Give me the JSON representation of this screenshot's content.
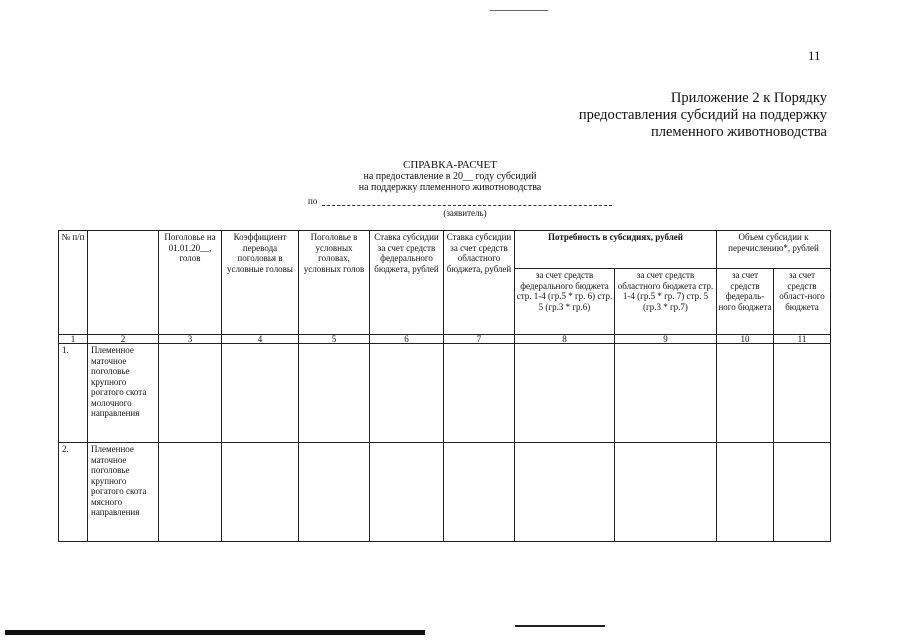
{
  "page_number": "11",
  "appendix": [
    "Приложение 2 к Порядку",
    "предоставления субсидий на поддержку",
    "племенного животноводства"
  ],
  "title": "СПРАВКА-РАСЧЕТ",
  "subtitle1": "на предоставление в 20__ году субсидий",
  "subtitle2": "на поддержку племенного животноводства",
  "applicant_prefix": "по",
  "applicant_label": "(заявитель)",
  "table": {
    "headers": {
      "c1": "№ п/п",
      "c2": "",
      "c3": "Поголовье на 01.01.20__, голов",
      "c4": "Коэффициент перевода поголовья в условные головы",
      "c5": "Поголовье в условных головах, условных голов",
      "c6": "Ставка субсидии за счет средств федерального бюджета, рублей",
      "c7": "Ставка субсидии за счет средств областного бюджета, рублей",
      "need": "Потребность в субсидиях, рублей",
      "volume": "Объем субсидии к перечислению*, рублей",
      "c8": "за счет средств федерального бюджета стр. 1-4 (гр.5 * гр. 6) стр. 5 (гр.3 * гр.6)",
      "c9": "за счет средств областного бюджета стр. 1-4 (гр.5 * гр. 7) стр. 5 (гр.3 * гр.7)",
      "c10": "за счет средств федераль-ного бюджета",
      "c11": "за счет средств област-ного бюджета"
    },
    "column_numbers": [
      "1",
      "2",
      "3",
      "4",
      "5",
      "6",
      "7",
      "8",
      "9",
      "10",
      "11"
    ],
    "rows": [
      {
        "no": "1.",
        "name": "Племенное маточное поголовье крупного рогатого скота молочного направления"
      },
      {
        "no": "2.",
        "name": "Племенное маточное поголовье крупного рогатого скота мясного направления"
      }
    ]
  }
}
